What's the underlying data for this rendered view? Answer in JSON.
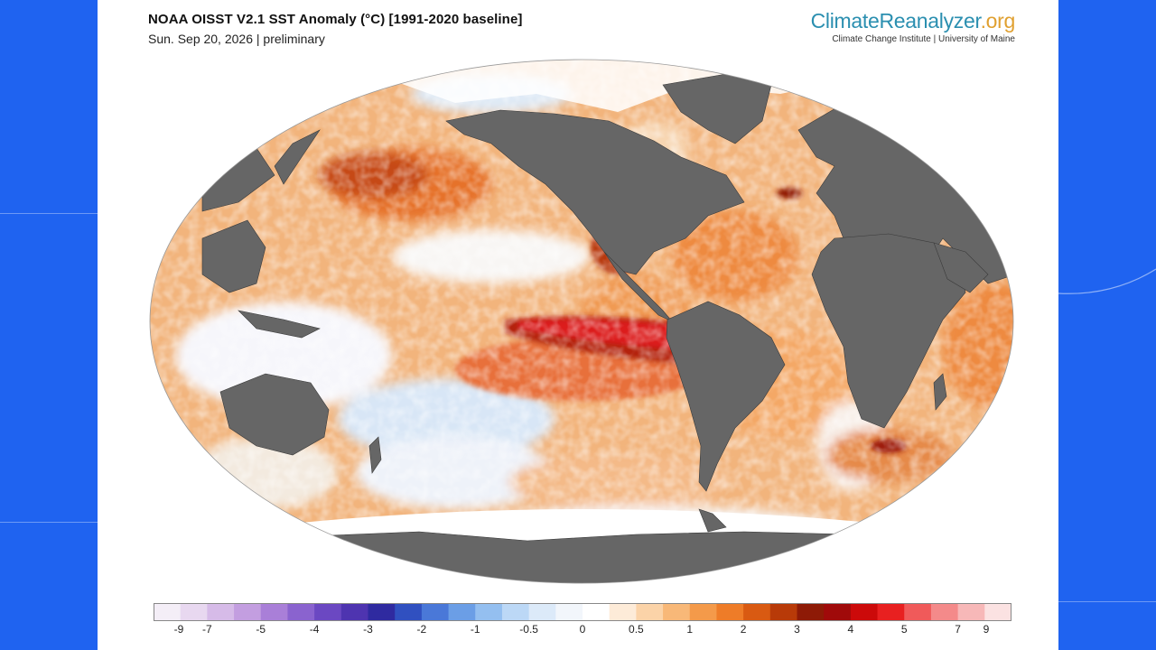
{
  "header": {
    "title": "NOAA OISST V2.1 SST Anomaly (°C) [1991-2020 baseline]",
    "subtitle": "Sun. Sep 20, 2026 | preliminary"
  },
  "logo": {
    "main": "ClimateReanalyzer",
    "suffix": ".org",
    "sub": "Climate Change Institute | University of Maine"
  },
  "map": {
    "projection": "robinson",
    "land_color": "#666666",
    "ice_color": "#ffffff"
  },
  "colorbar": {
    "ticks": [
      "-9",
      "-7",
      "-5",
      "-4",
      "-3",
      "-2",
      "-1",
      "-0.5",
      "0",
      "0.5",
      "1",
      "2",
      "3",
      "4",
      "5",
      "7",
      "9"
    ],
    "colors": [
      "#f4eef7",
      "#e8d8f0",
      "#d6bbe8",
      "#c39ee0",
      "#a97fd8",
      "#8a63cf",
      "#6b48c2",
      "#4e34b0",
      "#2f2aa0",
      "#3050c0",
      "#4a78d8",
      "#6b9ee6",
      "#94bff0",
      "#bcd8f6",
      "#dceaf9",
      "#f2f6fb",
      "#ffffff",
      "#fdebd8",
      "#fbd3a8",
      "#f8b878",
      "#f49a4a",
      "#ee7c28",
      "#d95a12",
      "#b83a08",
      "#8e1a06",
      "#a00a0a",
      "#cc0a0a",
      "#e82020",
      "#f05a5a",
      "#f48a8a",
      "#f7b8b8",
      "#fbe2e2"
    ]
  }
}
